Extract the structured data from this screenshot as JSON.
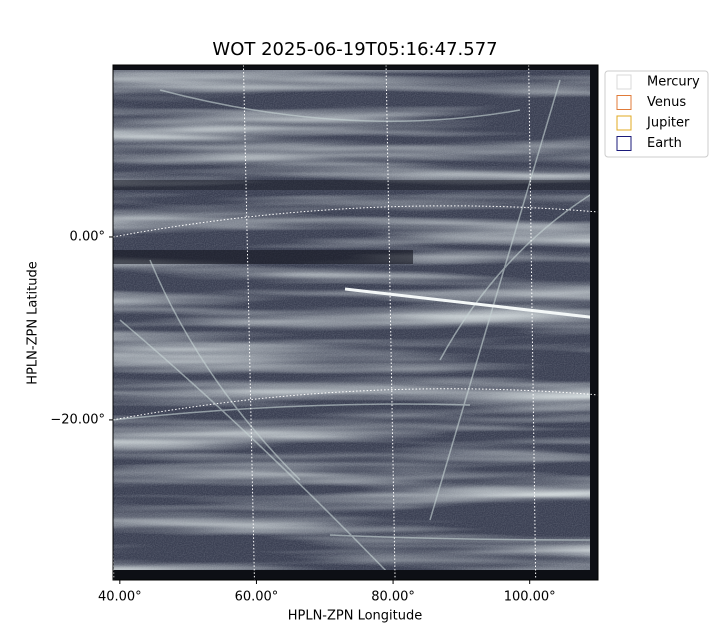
{
  "chart_data": {
    "type": "image",
    "title": "WOT 2025-06-19T05:16:47.577",
    "xlabel": "HPLN-ZPN Longitude",
    "ylabel": "HPLN-ZPN Latitude",
    "xlim": [
      39,
      110
    ],
    "ylim": [
      -37.5,
      18.8
    ],
    "xticks": [
      {
        "value": 40,
        "label": "40.00°"
      },
      {
        "value": 60,
        "label": "60.00°"
      },
      {
        "value": 80,
        "label": "80.00°"
      },
      {
        "value": 100,
        "label": "100.00°"
      }
    ],
    "yticks": [
      {
        "value": 0,
        "label": "0.00°"
      },
      {
        "value": -20,
        "label": "−20.00°"
      }
    ],
    "grid": true,
    "legend": "upper right",
    "series": [
      {
        "name": "Mercury",
        "color": "#d8d8d8"
      },
      {
        "name": "Venus",
        "color": "#e07b39"
      },
      {
        "name": "Jupiter",
        "color": "#e0a820"
      },
      {
        "name": "Earth",
        "color": "#1a1a7a"
      }
    ]
  }
}
